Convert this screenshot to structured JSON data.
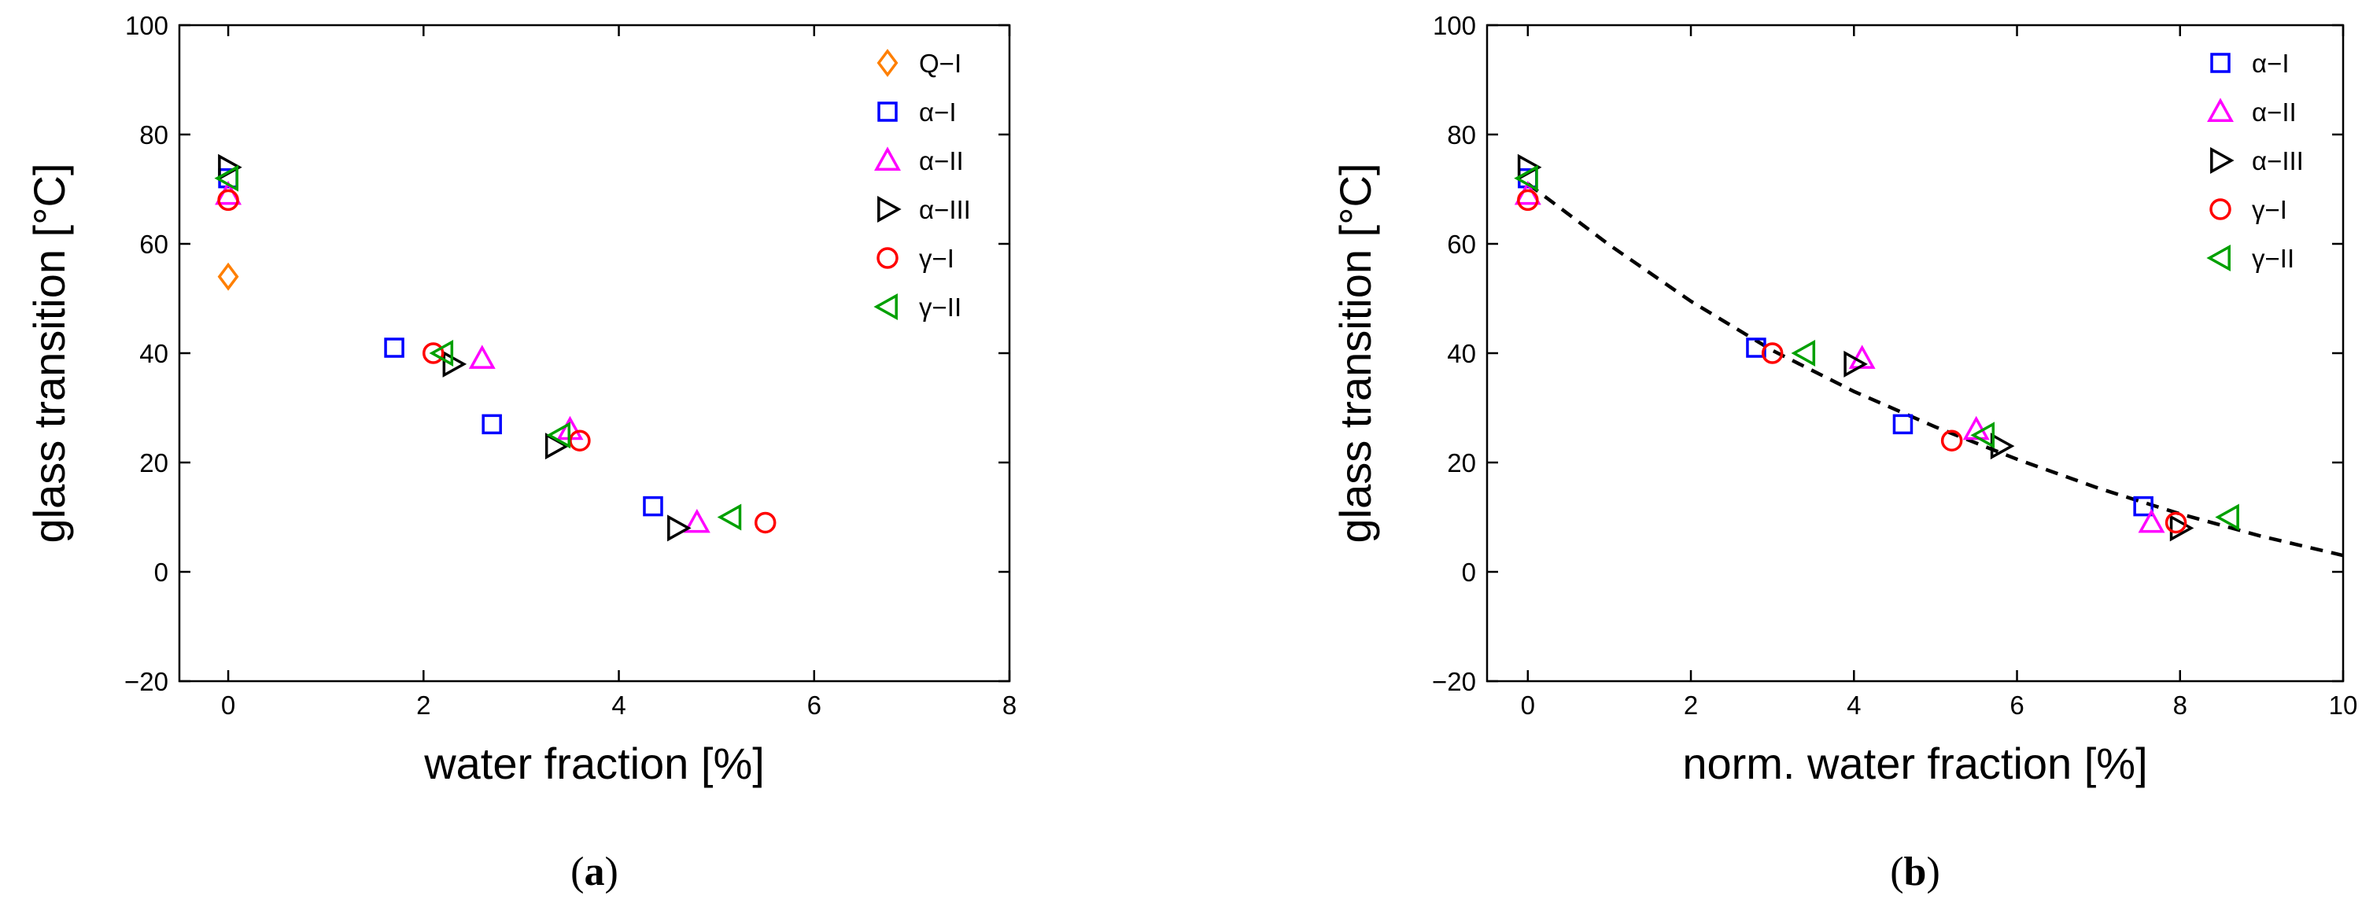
{
  "chart_data": [
    {
      "type": "scatter",
      "panel_label": "a",
      "title": "",
      "xlabel": "water fraction [%]",
      "ylabel": "glass transition [°C]",
      "xlim": [
        -0.5,
        8
      ],
      "ylim": [
        -20,
        100
      ],
      "xticks": [
        0,
        2,
        4,
        6,
        8
      ],
      "yticks": [
        -20,
        0,
        20,
        40,
        60,
        80,
        100
      ],
      "grid": false,
      "legend_position": "top-right",
      "series": [
        {
          "name": "Q−I",
          "marker": "diamond",
          "color": "#FF7F00",
          "points": [
            [
              0.0,
              54
            ]
          ]
        },
        {
          "name": "α−I",
          "marker": "square",
          "color": "#0000FF",
          "points": [
            [
              0.0,
              72
            ],
            [
              1.7,
              41
            ],
            [
              2.7,
              27
            ],
            [
              4.35,
              12
            ]
          ]
        },
        {
          "name": "α−II",
          "marker": "triangle-up",
          "color": "#FF00FF",
          "points": [
            [
              0.0,
              69
            ],
            [
              2.6,
              39
            ],
            [
              3.5,
              26
            ],
            [
              4.8,
              9
            ]
          ]
        },
        {
          "name": "α−III",
          "marker": "triangle-right",
          "color": "#000000",
          "points": [
            [
              0.0,
              74
            ],
            [
              2.3,
              38
            ],
            [
              3.35,
              23
            ],
            [
              4.6,
              8
            ]
          ]
        },
        {
          "name": "γ−I",
          "marker": "circle",
          "color": "#FF0000",
          "points": [
            [
              0.0,
              68
            ],
            [
              2.1,
              40
            ],
            [
              3.6,
              24
            ],
            [
              5.5,
              9
            ]
          ]
        },
        {
          "name": "γ−II",
          "marker": "triangle-left",
          "color": "#00A000",
          "points": [
            [
              0.0,
              72
            ],
            [
              2.2,
              40
            ],
            [
              3.4,
              25
            ],
            [
              5.15,
              10
            ]
          ]
        }
      ]
    },
    {
      "type": "scatter",
      "panel_label": "b",
      "title": "",
      "xlabel": "norm. water fraction [%]",
      "ylabel": "glass transition [°C]",
      "xlim": [
        -0.5,
        10
      ],
      "ylim": [
        -20,
        100
      ],
      "xticks": [
        0,
        2,
        4,
        6,
        8,
        10
      ],
      "yticks": [
        -20,
        0,
        20,
        40,
        60,
        80,
        100
      ],
      "grid": false,
      "legend_position": "top-right",
      "fit_line": {
        "style": "dashed",
        "color": "#000000",
        "x": [
          0,
          1,
          2,
          3,
          4,
          5,
          6,
          7,
          8,
          9,
          10
        ],
        "y": [
          71,
          59.8,
          49.5,
          40.5,
          33.0,
          26.5,
          20.6,
          15.3,
          10.6,
          6.5,
          3
        ]
      },
      "series": [
        {
          "name": "α−I",
          "marker": "square",
          "color": "#0000FF",
          "points": [
            [
              0.0,
              72
            ],
            [
              2.8,
              41
            ],
            [
              4.6,
              27
            ],
            [
              7.55,
              12
            ]
          ]
        },
        {
          "name": "α−II",
          "marker": "triangle-up",
          "color": "#FF00FF",
          "points": [
            [
              0.0,
              69
            ],
            [
              4.1,
              39
            ],
            [
              5.5,
              26
            ],
            [
              7.65,
              9
            ]
          ]
        },
        {
          "name": "α−III",
          "marker": "triangle-right",
          "color": "#000000",
          "points": [
            [
              0.0,
              74
            ],
            [
              4.0,
              38
            ],
            [
              5.8,
              23
            ],
            [
              8.0,
              8
            ]
          ]
        },
        {
          "name": "γ−I",
          "marker": "circle",
          "color": "#FF0000",
          "points": [
            [
              0.0,
              68
            ],
            [
              3.0,
              40
            ],
            [
              5.2,
              24
            ],
            [
              7.95,
              9
            ]
          ]
        },
        {
          "name": "γ−II",
          "marker": "triangle-left",
          "color": "#00A000",
          "points": [
            [
              0.0,
              72
            ],
            [
              3.4,
              40
            ],
            [
              5.6,
              25
            ],
            [
              8.6,
              10
            ]
          ]
        }
      ]
    }
  ]
}
